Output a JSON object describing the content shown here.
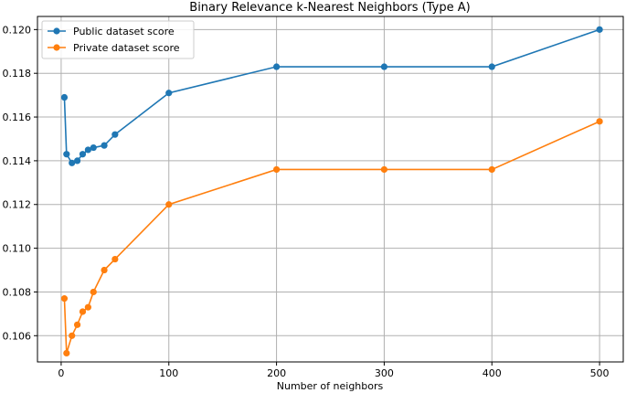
{
  "chart_data": {
    "type": "line",
    "title": "Binary Relevance k-Nearest Neighbors (Type A)",
    "xlabel": "Number of neighbors",
    "ylabel": "",
    "xlim": [
      -22,
      522
    ],
    "ylim": [
      0.1048,
      0.1206
    ],
    "grid": true,
    "legend_position": "upper-left",
    "x_ticks": [
      0,
      100,
      200,
      300,
      400,
      500
    ],
    "y_ticks": [
      0.106,
      0.108,
      0.11,
      0.112,
      0.114,
      0.116,
      0.118,
      0.12
    ],
    "x_tick_labels": [
      "0",
      "100",
      "200",
      "300",
      "400",
      "500"
    ],
    "y_tick_labels": [
      "0.106",
      "0.108",
      "0.110",
      "0.112",
      "0.114",
      "0.116",
      "0.118",
      "0.120"
    ],
    "series": [
      {
        "name": "Public dataset score",
        "color": "#1f77b4",
        "x": [
          3,
          5,
          10,
          15,
          20,
          25,
          30,
          40,
          50,
          100,
          200,
          300,
          400,
          500
        ],
        "y": [
          0.1169,
          0.1143,
          0.1139,
          0.114,
          0.1143,
          0.1145,
          0.1146,
          0.1147,
          0.1152,
          0.1171,
          0.1183,
          0.1183,
          0.1183,
          0.12
        ]
      },
      {
        "name": "Private dataset score",
        "color": "#ff7f0e",
        "x": [
          3,
          5,
          10,
          15,
          20,
          25,
          30,
          40,
          50,
          100,
          200,
          300,
          400,
          500
        ],
        "y": [
          0.1077,
          0.1052,
          0.106,
          0.1065,
          0.1071,
          0.1073,
          0.108,
          0.109,
          0.1095,
          0.112,
          0.1136,
          0.1136,
          0.1136,
          0.1158
        ]
      }
    ]
  }
}
